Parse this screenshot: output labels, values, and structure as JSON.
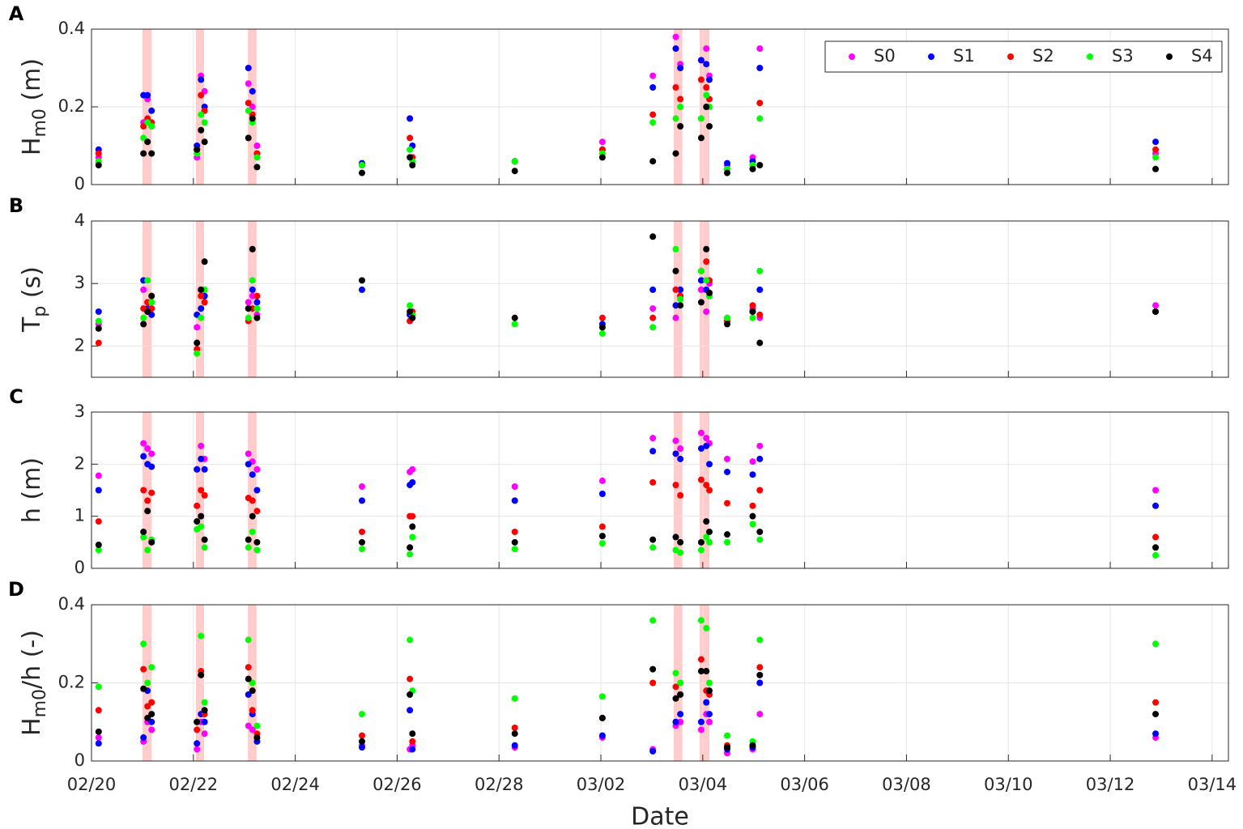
{
  "chart_data": [
    {
      "type": "scatter",
      "label": "A",
      "ylabel": [
        "H",
        "m0",
        " (m)"
      ],
      "x": [
        0.14,
        1.02,
        1.1,
        1.18,
        2.07,
        2.15,
        2.22,
        3.08,
        3.16,
        3.25,
        5.31,
        6.25,
        6.3,
        8.31,
        10.03,
        11.02,
        11.47,
        11.56,
        11.97,
        12.07,
        12.13,
        12.48,
        12.98,
        13.12,
        20.89
      ],
      "xlim": [
        0,
        22.32
      ],
      "xticks": [
        0,
        2,
        4,
        6,
        8,
        10,
        12,
        14,
        16,
        18,
        20,
        22
      ],
      "ylim": [
        0,
        0.4
      ],
      "yticks": [
        0,
        0.2,
        0.4
      ],
      "grid": true,
      "legend": "top-right",
      "shaded_intervals": [
        [
          1.0,
          1.18
        ],
        [
          2.05,
          2.21
        ],
        [
          3.07,
          3.24
        ],
        [
          11.43,
          11.6
        ],
        [
          11.94,
          12.13
        ]
      ],
      "shade_color": "#ffcccc",
      "series": [
        {
          "name": "S0",
          "color": "#ff00ff",
          "values": [
            0.07,
            0.16,
            0.22,
            0.15,
            0.07,
            0.28,
            0.24,
            0.26,
            0.2,
            0.1,
            0.05,
            0.17,
            0.07,
            0.06,
            0.11,
            0.28,
            0.38,
            0.31,
            0.32,
            0.35,
            0.28,
            0.05,
            0.07,
            0.35,
            0.08
          ]
        },
        {
          "name": "S1",
          "color": "#0000ff",
          "values": [
            0.09,
            0.23,
            0.23,
            0.19,
            0.1,
            0.27,
            0.2,
            0.3,
            0.24,
            0.08,
            0.055,
            0.17,
            0.1,
            0.06,
            0.09,
            0.25,
            0.35,
            0.3,
            0.32,
            0.31,
            0.27,
            0.055,
            0.06,
            0.3,
            0.11
          ]
        },
        {
          "name": "S2",
          "color": "#ff0000",
          "values": [
            0.08,
            0.15,
            0.17,
            0.16,
            0.09,
            0.23,
            0.19,
            0.21,
            0.18,
            0.08,
            0.05,
            0.12,
            0.07,
            0.06,
            0.09,
            0.18,
            0.25,
            0.22,
            0.27,
            0.25,
            0.22,
            0.04,
            0.05,
            0.21,
            0.09
          ]
        },
        {
          "name": "S3",
          "color": "#00ff00",
          "values": [
            0.06,
            0.12,
            0.16,
            0.15,
            0.08,
            0.18,
            0.16,
            0.19,
            0.16,
            0.07,
            0.05,
            0.09,
            0.06,
            0.06,
            0.08,
            0.16,
            0.17,
            0.2,
            0.17,
            0.23,
            0.2,
            0.04,
            0.05,
            0.17,
            0.07
          ]
        },
        {
          "name": "S4",
          "color": "#000000",
          "values": [
            0.05,
            0.08,
            0.11,
            0.08,
            0.09,
            0.14,
            0.11,
            0.12,
            0.17,
            0.045,
            0.03,
            0.07,
            0.05,
            0.035,
            0.07,
            0.06,
            0.08,
            0.15,
            0.12,
            0.2,
            0.15,
            0.03,
            0.04,
            0.05,
            0.04
          ]
        }
      ]
    },
    {
      "type": "scatter",
      "label": "B",
      "ylabel": [
        "T",
        "p",
        " (s)"
      ],
      "x": [
        0.14,
        1.02,
        1.1,
        1.18,
        2.07,
        2.15,
        2.22,
        3.08,
        3.16,
        3.25,
        5.31,
        6.25,
        6.3,
        8.31,
        10.03,
        11.02,
        11.47,
        11.56,
        11.97,
        12.07,
        12.13,
        12.48,
        12.98,
        13.12,
        20.89
      ],
      "xlim": [
        0,
        22.32
      ],
      "xticks": [
        0,
        2,
        4,
        6,
        8,
        10,
        12,
        14,
        16,
        18,
        20,
        22
      ],
      "ylim": [
        1.5,
        4
      ],
      "yticks": [
        2,
        3,
        4
      ],
      "grid": true,
      "shaded_intervals": [
        [
          1.0,
          1.18
        ],
        [
          2.05,
          2.21
        ],
        [
          3.07,
          3.24
        ],
        [
          11.43,
          11.6
        ],
        [
          11.94,
          12.13
        ]
      ],
      "shade_color": "#ffcccc",
      "series": [
        {
          "color": "#ff00ff",
          "values": [
            2.35,
            2.9,
            2.7,
            2.6,
            2.3,
            2.9,
            2.8,
            2.7,
            2.8,
            2.5,
            null,
            2.4,
            2.5,
            null,
            null,
            2.6,
            2.45,
            2.8,
            2.9,
            2.55,
            3.0,
            2.45,
            2.6,
            2.45,
            2.65
          ]
        },
        {
          "color": "#0000ff",
          "values": [
            2.55,
            3.05,
            2.6,
            2.5,
            2.5,
            2.6,
            2.8,
            2.6,
            2.9,
            2.7,
            2.9,
            2.5,
            2.45,
            null,
            2.35,
            2.9,
            2.65,
            2.9,
            3.05,
            2.9,
            2.8,
            2.4,
            2.55,
            2.9,
            2.55
          ]
        },
        {
          "color": "#ff0000",
          "values": [
            2.05,
            2.6,
            2.7,
            2.6,
            1.95,
            2.8,
            2.7,
            2.4,
            2.6,
            2.8,
            null,
            2.4,
            2.55,
            null,
            2.45,
            2.45,
            2.9,
            2.8,
            3.2,
            3.35,
            3.05,
            2.4,
            2.65,
            2.5,
            2.55
          ]
        },
        {
          "color": "#00ff00",
          "values": [
            2.4,
            2.45,
            3.05,
            2.7,
            1.88,
            2.45,
            2.9,
            2.45,
            3.05,
            2.6,
            null,
            2.65,
            2.5,
            2.35,
            2.2,
            2.3,
            3.55,
            2.75,
            3.2,
            3.05,
            2.8,
            2.45,
            2.45,
            3.2,
            2.55
          ]
        },
        {
          "color": "#000000",
          "values": [
            2.28,
            2.35,
            2.55,
            2.8,
            2.05,
            2.9,
            3.35,
            2.6,
            3.55,
            2.45,
            3.05,
            2.55,
            2.45,
            2.45,
            2.3,
            3.75,
            3.2,
            2.65,
            2.7,
            3.55,
            2.85,
            2.35,
            2.55,
            2.05,
            2.55
          ]
        }
      ]
    },
    {
      "type": "scatter",
      "label": "C",
      "ylabel": [
        "h (m)"
      ],
      "x": [
        0.14,
        1.02,
        1.1,
        1.18,
        2.07,
        2.15,
        2.22,
        3.08,
        3.16,
        3.25,
        5.31,
        6.25,
        6.3,
        8.31,
        10.03,
        11.02,
        11.47,
        11.56,
        11.97,
        12.07,
        12.13,
        12.48,
        12.98,
        13.12,
        20.89
      ],
      "xlim": [
        0,
        22.32
      ],
      "xticks": [
        0,
        2,
        4,
        6,
        8,
        10,
        12,
        14,
        16,
        18,
        20,
        22
      ],
      "ylim": [
        0,
        3
      ],
      "yticks": [
        0,
        1,
        2,
        3
      ],
      "grid": true,
      "shaded_intervals": [
        [
          1.0,
          1.18
        ],
        [
          2.05,
          2.21
        ],
        [
          3.07,
          3.24
        ],
        [
          11.43,
          11.6
        ],
        [
          11.94,
          12.13
        ]
      ],
      "shade_color": "#ffcccc",
      "series": [
        {
          "color": "#ff00ff",
          "values": [
            1.78,
            2.4,
            2.3,
            2.2,
            1.9,
            2.35,
            2.1,
            2.2,
            2.05,
            1.9,
            1.57,
            1.85,
            1.9,
            1.57,
            1.68,
            2.5,
            2.45,
            2.3,
            2.6,
            2.5,
            2.4,
            2.1,
            2.05,
            2.35,
            1.5
          ]
        },
        {
          "color": "#0000ff",
          "values": [
            1.5,
            2.15,
            2.0,
            1.95,
            1.9,
            2.1,
            1.9,
            2.0,
            1.8,
            1.5,
            1.3,
            1.6,
            1.65,
            1.3,
            1.43,
            2.25,
            2.2,
            2.1,
            2.3,
            2.35,
            2.0,
            1.85,
            1.8,
            2.1,
            1.2
          ]
        },
        {
          "color": "#ff0000",
          "values": [
            0.9,
            1.5,
            1.3,
            1.45,
            1.2,
            1.5,
            1.4,
            1.35,
            1.3,
            1.1,
            0.7,
            1.0,
            1.0,
            0.7,
            0.8,
            1.65,
            1.6,
            1.4,
            1.7,
            1.6,
            1.5,
            1.25,
            1.2,
            1.5,
            0.6
          ]
        },
        {
          "color": "#00ff00",
          "values": [
            0.35,
            0.6,
            0.35,
            0.55,
            0.75,
            0.8,
            0.4,
            0.4,
            0.7,
            0.35,
            0.37,
            0.27,
            0.6,
            0.37,
            0.48,
            0.4,
            0.35,
            0.3,
            0.35,
            0.6,
            0.5,
            0.5,
            0.85,
            0.55,
            0.25
          ]
        },
        {
          "color": "#000000",
          "values": [
            0.45,
            0.7,
            1.1,
            0.5,
            0.9,
            1.0,
            0.55,
            0.55,
            1.0,
            0.5,
            0.5,
            0.4,
            0.8,
            0.5,
            0.62,
            0.55,
            0.6,
            0.5,
            0.5,
            0.9,
            0.7,
            0.65,
            1.0,
            0.7,
            0.4
          ]
        }
      ]
    },
    {
      "type": "scatter",
      "label": "D",
      "ylabel": [
        "H",
        "m0",
        "/h (-)"
      ],
      "xlabel": "Date",
      "x": [
        0.14,
        1.02,
        1.1,
        1.18,
        2.07,
        2.15,
        2.22,
        3.08,
        3.16,
        3.25,
        5.31,
        6.25,
        6.3,
        8.31,
        10.03,
        11.02,
        11.47,
        11.56,
        11.97,
        12.07,
        12.13,
        12.48,
        12.98,
        13.12,
        20.89
      ],
      "xlim": [
        0,
        22.32
      ],
      "xticks": [
        {
          "value": 0,
          "label": "02/20"
        },
        {
          "value": 2,
          "label": "02/22"
        },
        {
          "value": 4,
          "label": "02/24"
        },
        {
          "value": 6,
          "label": "02/26"
        },
        {
          "value": 8,
          "label": "02/28"
        },
        {
          "value": 10,
          "label": "03/02"
        },
        {
          "value": 12,
          "label": "03/04"
        },
        {
          "value": 14,
          "label": "03/06"
        },
        {
          "value": 16,
          "label": "03/08"
        },
        {
          "value": 18,
          "label": "03/10"
        },
        {
          "value": 20,
          "label": "03/12"
        },
        {
          "value": 22,
          "label": "03/14"
        }
      ],
      "ylim": [
        0,
        0.4
      ],
      "yticks": [
        0,
        0.2,
        0.4
      ],
      "grid": true,
      "shaded_intervals": [
        [
          1.0,
          1.18
        ],
        [
          2.05,
          2.21
        ],
        [
          3.07,
          3.24
        ],
        [
          11.43,
          11.6
        ],
        [
          11.94,
          12.13
        ]
      ],
      "shade_color": "#ffcccc",
      "series": [
        {
          "color": "#ff00ff",
          "values": [
            0.06,
            0.05,
            0.1,
            0.08,
            0.03,
            0.1,
            0.07,
            0.09,
            0.08,
            0.06,
            0.04,
            0.03,
            0.04,
            0.035,
            0.06,
            0.03,
            0.09,
            0.1,
            0.08,
            0.12,
            0.1,
            0.02,
            0.03,
            0.12,
            0.06
          ]
        },
        {
          "color": "#0000ff",
          "values": [
            0.045,
            0.06,
            0.18,
            0.1,
            0.045,
            0.12,
            0.1,
            0.17,
            0.12,
            0.05,
            0.035,
            0.13,
            0.03,
            0.04,
            0.065,
            0.025,
            0.1,
            0.12,
            0.1,
            0.15,
            0.12,
            0.03,
            0.035,
            0.2,
            0.07
          ]
        },
        {
          "color": "#ff0000",
          "values": [
            0.13,
            0.235,
            0.14,
            0.15,
            0.08,
            0.23,
            0.12,
            0.24,
            0.13,
            0.07,
            0.065,
            0.21,
            0.05,
            0.085,
            0.11,
            0.2,
            0.19,
            0.17,
            0.26,
            0.18,
            0.17,
            0.04,
            0.04,
            0.24,
            0.15
          ]
        },
        {
          "color": "#00ff00",
          "values": [
            0.19,
            0.3,
            0.2,
            0.24,
            0.1,
            0.32,
            0.15,
            0.31,
            0.2,
            0.09,
            0.12,
            0.31,
            0.18,
            0.16,
            0.165,
            0.36,
            0.225,
            0.2,
            0.36,
            0.34,
            0.2,
            0.065,
            0.05,
            0.31,
            0.3
          ]
        },
        {
          "color": "#000000",
          "values": [
            0.075,
            0.185,
            0.11,
            0.12,
            0.1,
            0.22,
            0.13,
            0.21,
            0.18,
            0.06,
            0.05,
            0.17,
            0.07,
            0.07,
            0.11,
            0.235,
            0.16,
            0.17,
            0.23,
            0.23,
            0.18,
            0.035,
            0.04,
            0.22,
            0.12
          ]
        }
      ]
    }
  ]
}
